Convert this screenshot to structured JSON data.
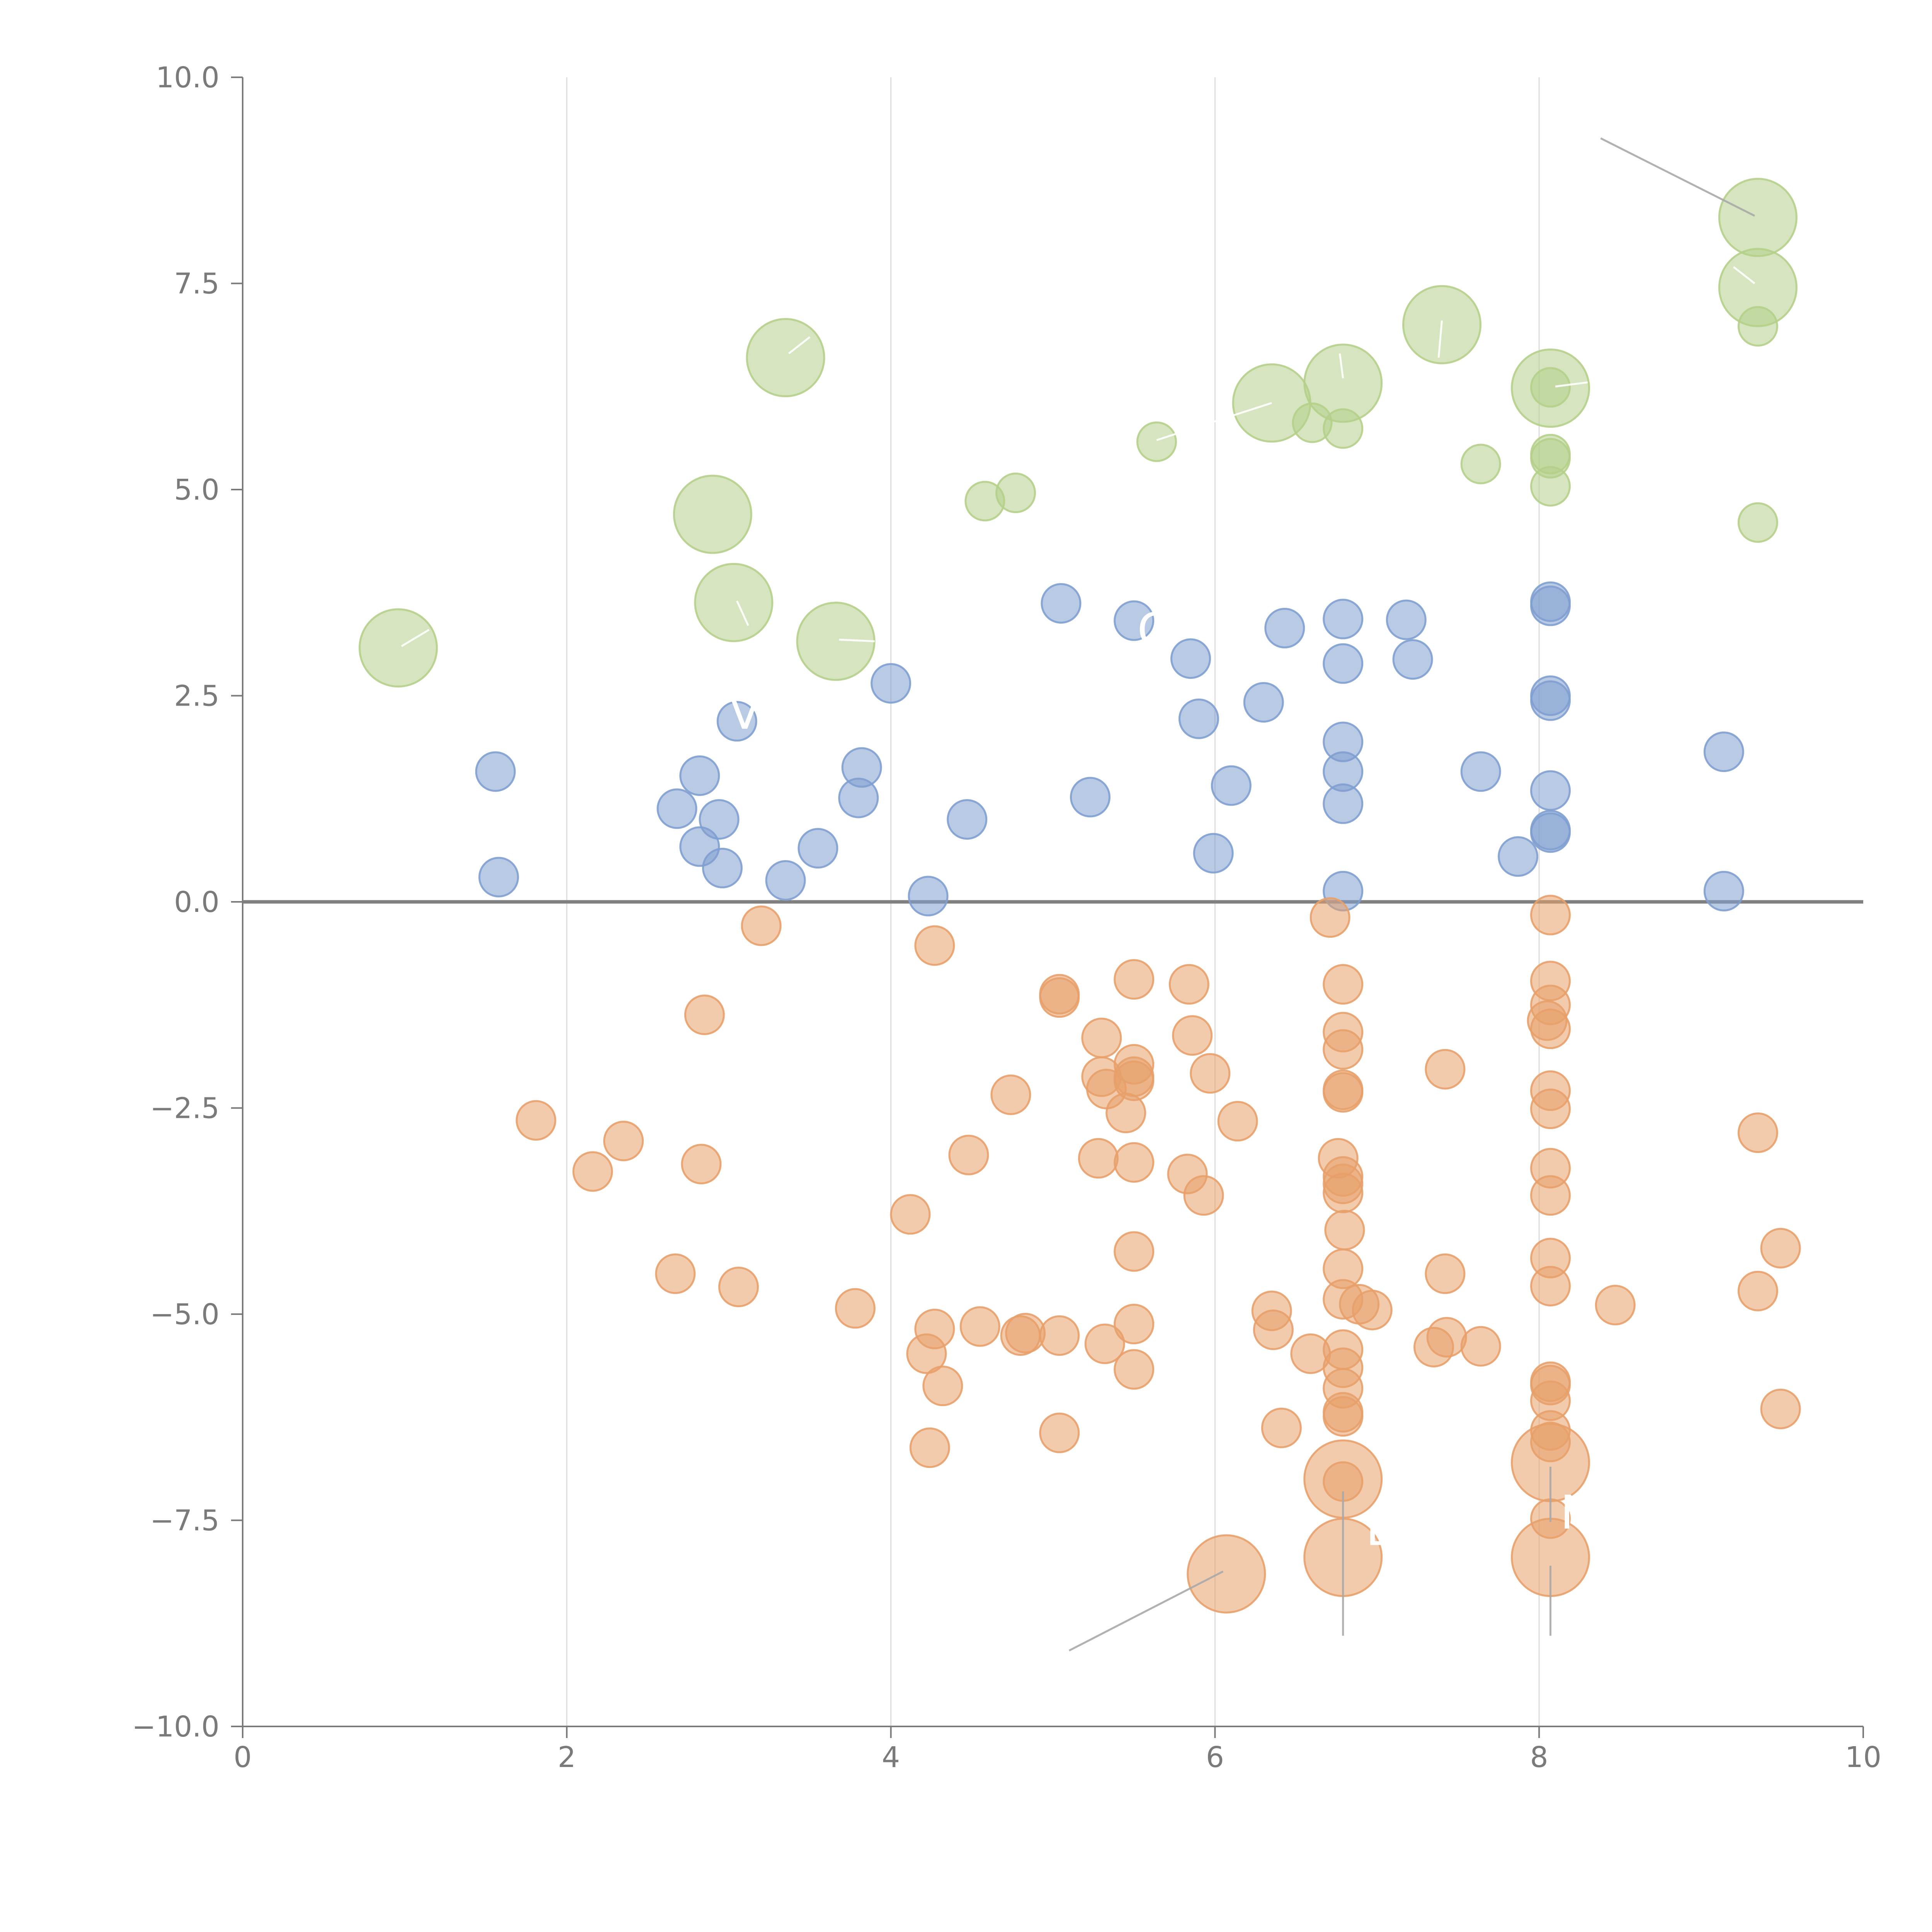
{
  "chart_data": {
    "type": "scatter",
    "title": "",
    "xlabel": "",
    "ylabel": "",
    "xlim": [
      0,
      10
    ],
    "ylim": [
      -10,
      10
    ],
    "x_ticks": [
      0,
      2,
      4,
      6,
      8,
      10
    ],
    "x_tick_labels": [
      "0",
      "2",
      "4",
      "6",
      "8",
      "10"
    ],
    "y_ticks": [
      10,
      7.5,
      5,
      2.5,
      0,
      -2.5,
      -5,
      -7.5,
      -10
    ],
    "y_tick_labels": [
      "10.0",
      "7.5",
      "5.0",
      "2.5",
      "0.0",
      "−2.5",
      "−5.0",
      "−7.5",
      "−10.0"
    ],
    "grid": "vertical",
    "zero_line": true,
    "legend": "none",
    "colors": {
      "blue": "#7F9FD0",
      "orange": "#E8A06A",
      "green": "#B5CF8A",
      "axis": "#7a7a7a",
      "grid": "#dcdcdc",
      "zero": "#808080",
      "label": "#ffffff",
      "leader": "#a8a8a8"
    },
    "series": [
      {
        "name": "blue",
        "color": "#7F9FD0",
        "points": [
          {
            "x": 1.56,
            "y": 1.58,
            "s": 1
          },
          {
            "x": 1.58,
            "y": 0.3,
            "s": 1
          },
          {
            "x": 2.68,
            "y": 1.13,
            "s": 1
          },
          {
            "x": 2.82,
            "y": 1.53,
            "s": 1
          },
          {
            "x": 2.82,
            "y": 0.67,
            "s": 1
          },
          {
            "x": 2.94,
            "y": 1.0,
            "s": 1
          },
          {
            "x": 2.96,
            "y": 0.41,
            "s": 1
          },
          {
            "x": 3.05,
            "y": 2.19,
            "s": 1
          },
          {
            "x": 3.35,
            "y": 0.26,
            "s": 1
          },
          {
            "x": 3.55,
            "y": 0.65,
            "s": 1
          },
          {
            "x": 3.8,
            "y": 1.26,
            "s": 1
          },
          {
            "x": 3.82,
            "y": 1.63,
            "s": 1
          },
          {
            "x": 4.0,
            "y": 2.65,
            "s": 1
          },
          {
            "x": 4.23,
            "y": 0.07,
            "s": 1
          },
          {
            "x": 4.47,
            "y": 1.0,
            "s": 1
          },
          {
            "x": 5.05,
            "y": 3.62,
            "s": 1
          },
          {
            "x": 5.23,
            "y": 1.27,
            "s": 1
          },
          {
            "x": 5.5,
            "y": 3.41,
            "s": 1
          },
          {
            "x": 5.85,
            "y": 2.95,
            "s": 1
          },
          {
            "x": 5.9,
            "y": 2.22,
            "s": 1
          },
          {
            "x": 5.99,
            "y": 0.59,
            "s": 1
          },
          {
            "x": 6.1,
            "y": 1.41,
            "s": 1
          },
          {
            "x": 6.3,
            "y": 2.42,
            "s": 1
          },
          {
            "x": 6.43,
            "y": 3.32,
            "s": 1
          },
          {
            "x": 6.79,
            "y": 3.43,
            "s": 1
          },
          {
            "x": 6.79,
            "y": 2.89,
            "s": 1
          },
          {
            "x": 6.79,
            "y": 1.94,
            "s": 1
          },
          {
            "x": 6.79,
            "y": 1.58,
            "s": 1
          },
          {
            "x": 6.79,
            "y": 1.19,
            "s": 1
          },
          {
            "x": 6.79,
            "y": 0.13,
            "s": 1
          },
          {
            "x": 7.18,
            "y": 3.42,
            "s": 1
          },
          {
            "x": 7.22,
            "y": 2.94,
            "s": 1
          },
          {
            "x": 7.64,
            "y": 1.58,
            "s": 1
          },
          {
            "x": 7.87,
            "y": 0.55,
            "s": 1
          },
          {
            "x": 8.07,
            "y": 3.64,
            "s": 1
          },
          {
            "x": 8.07,
            "y": 3.59,
            "s": 1
          },
          {
            "x": 8.07,
            "y": 2.5,
            "s": 1
          },
          {
            "x": 8.07,
            "y": 2.44,
            "s": 1
          },
          {
            "x": 8.07,
            "y": 1.35,
            "s": 1
          },
          {
            "x": 8.07,
            "y": 0.87,
            "s": 1
          },
          {
            "x": 8.07,
            "y": 0.84,
            "s": 1
          },
          {
            "x": 9.14,
            "y": 1.82,
            "s": 1
          },
          {
            "x": 9.14,
            "y": 0.13,
            "s": 1
          }
        ]
      },
      {
        "name": "orange",
        "color": "#E8A06A",
        "points": [
          {
            "x": 1.81,
            "y": -2.65,
            "s": 1
          },
          {
            "x": 2.16,
            "y": -3.27,
            "s": 1
          },
          {
            "x": 2.35,
            "y": -2.9,
            "s": 1
          },
          {
            "x": 2.67,
            "y": -4.51,
            "s": 1
          },
          {
            "x": 2.83,
            "y": -3.18,
            "s": 1
          },
          {
            "x": 2.85,
            "y": -1.37,
            "s": 1
          },
          {
            "x": 3.06,
            "y": -4.67,
            "s": 1
          },
          {
            "x": 3.2,
            "y": -0.29,
            "s": 1
          },
          {
            "x": 3.78,
            "y": -4.93,
            "s": 1
          },
          {
            "x": 4.12,
            "y": -3.79,
            "s": 1
          },
          {
            "x": 4.22,
            "y": -5.48,
            "s": 1
          },
          {
            "x": 4.24,
            "y": -6.62,
            "s": 1
          },
          {
            "x": 4.27,
            "y": -0.53,
            "s": 1
          },
          {
            "x": 4.27,
            "y": -5.18,
            "s": 1
          },
          {
            "x": 4.32,
            "y": -5.87,
            "s": 1
          },
          {
            "x": 4.48,
            "y": -3.07,
            "s": 1
          },
          {
            "x": 4.55,
            "y": -5.15,
            "s": 1
          },
          {
            "x": 4.74,
            "y": -2.34,
            "s": 1
          },
          {
            "x": 4.8,
            "y": -5.26,
            "s": 1
          },
          {
            "x": 4.83,
            "y": -5.23,
            "s": 1
          },
          {
            "x": 5.04,
            "y": -1.12,
            "s": 1
          },
          {
            "x": 5.04,
            "y": -1.16,
            "s": 1
          },
          {
            "x": 5.04,
            "y": -5.26,
            "s": 1
          },
          {
            "x": 5.04,
            "y": -6.44,
            "s": 1
          },
          {
            "x": 5.28,
            "y": -3.11,
            "s": 1
          },
          {
            "x": 5.3,
            "y": -1.65,
            "s": 1
          },
          {
            "x": 5.3,
            "y": -2.12,
            "s": 1
          },
          {
            "x": 5.32,
            "y": -5.36,
            "s": 1
          },
          {
            "x": 5.33,
            "y": -2.27,
            "s": 1
          },
          {
            "x": 5.45,
            "y": -2.56,
            "s": 1
          },
          {
            "x": 5.5,
            "y": -0.94,
            "s": 1
          },
          {
            "x": 5.5,
            "y": -1.97,
            "s": 1
          },
          {
            "x": 5.5,
            "y": -2.12,
            "s": 1
          },
          {
            "x": 5.5,
            "y": -2.17,
            "s": 1
          },
          {
            "x": 5.5,
            "y": -3.16,
            "s": 1
          },
          {
            "x": 5.5,
            "y": -4.24,
            "s": 1
          },
          {
            "x": 5.5,
            "y": -5.12,
            "s": 1
          },
          {
            "x": 5.5,
            "y": -5.67,
            "s": 1
          },
          {
            "x": 5.83,
            "y": -3.3,
            "s": 1
          },
          {
            "x": 5.84,
            "y": -1.0,
            "s": 1
          },
          {
            "x": 5.86,
            "y": -1.62,
            "s": 1
          },
          {
            "x": 5.93,
            "y": -3.56,
            "s": 1
          },
          {
            "x": 5.97,
            "y": -2.08,
            "s": 1
          },
          {
            "x": 6.07,
            "y": -8.15,
            "s": 4
          },
          {
            "x": 6.14,
            "y": -2.66,
            "s": 1
          },
          {
            "x": 6.35,
            "y": -4.96,
            "s": 1
          },
          {
            "x": 6.36,
            "y": -5.19,
            "s": 1
          },
          {
            "x": 6.41,
            "y": -6.38,
            "s": 1
          },
          {
            "x": 6.59,
            "y": -5.48,
            "s": 1
          },
          {
            "x": 6.71,
            "y": -0.19,
            "s": 1
          },
          {
            "x": 6.79,
            "y": -1.0,
            "s": 1
          },
          {
            "x": 6.79,
            "y": -1.58,
            "s": 1
          },
          {
            "x": 6.79,
            "y": -1.79,
            "s": 1
          },
          {
            "x": 6.79,
            "y": -2.28,
            "s": 1
          },
          {
            "x": 6.79,
            "y": -2.31,
            "s": 1
          },
          {
            "x": 6.76,
            "y": -3.11,
            "s": 1
          },
          {
            "x": 6.79,
            "y": -3.33,
            "s": 1
          },
          {
            "x": 6.79,
            "y": -3.42,
            "s": 1
          },
          {
            "x": 6.79,
            "y": -3.53,
            "s": 1
          },
          {
            "x": 6.8,
            "y": -3.98,
            "s": 1
          },
          {
            "x": 6.79,
            "y": -4.45,
            "s": 1
          },
          {
            "x": 6.79,
            "y": -4.82,
            "s": 1
          },
          {
            "x": 6.89,
            "y": -4.88,
            "s": 1
          },
          {
            "x": 6.97,
            "y": -4.95,
            "s": 1
          },
          {
            "x": 6.79,
            "y": -5.43,
            "s": 1
          },
          {
            "x": 6.79,
            "y": -5.65,
            "s": 1
          },
          {
            "x": 6.79,
            "y": -5.9,
            "s": 1
          },
          {
            "x": 6.79,
            "y": -6.19,
            "s": 1
          },
          {
            "x": 6.79,
            "y": -6.24,
            "s": 1
          },
          {
            "x": 6.79,
            "y": -7.0,
            "s": 4
          },
          {
            "x": 6.79,
            "y": -7.03,
            "s": 1
          },
          {
            "x": 6.79,
            "y": -7.95,
            "s": 4
          },
          {
            "x": 7.35,
            "y": -5.4,
            "s": 1
          },
          {
            "x": 7.42,
            "y": -2.03,
            "s": 1
          },
          {
            "x": 7.42,
            "y": -4.51,
            "s": 1
          },
          {
            "x": 7.43,
            "y": -5.28,
            "s": 1
          },
          {
            "x": 7.64,
            "y": -5.39,
            "s": 1
          },
          {
            "x": 8.07,
            "y": -0.16,
            "s": 1
          },
          {
            "x": 8.07,
            "y": -0.96,
            "s": 1
          },
          {
            "x": 8.07,
            "y": -1.25,
            "s": 1
          },
          {
            "x": 8.05,
            "y": -1.44,
            "s": 1
          },
          {
            "x": 8.07,
            "y": -1.54,
            "s": 1
          },
          {
            "x": 8.07,
            "y": -2.29,
            "s": 1
          },
          {
            "x": 8.07,
            "y": -2.51,
            "s": 1
          },
          {
            "x": 8.07,
            "y": -3.23,
            "s": 1
          },
          {
            "x": 8.07,
            "y": -3.56,
            "s": 1
          },
          {
            "x": 8.07,
            "y": -4.32,
            "s": 1
          },
          {
            "x": 8.07,
            "y": -4.66,
            "s": 1
          },
          {
            "x": 8.07,
            "y": -5.82,
            "s": 1
          },
          {
            "x": 8.07,
            "y": -5.86,
            "s": 1
          },
          {
            "x": 8.07,
            "y": -6.05,
            "s": 1
          },
          {
            "x": 8.07,
            "y": -6.41,
            "s": 1
          },
          {
            "x": 8.07,
            "y": -6.55,
            "s": 1
          },
          {
            "x": 8.07,
            "y": -6.8,
            "s": 4
          },
          {
            "x": 8.07,
            "y": -7.48,
            "s": 1
          },
          {
            "x": 8.07,
            "y": -7.95,
            "s": 4
          },
          {
            "x": 8.47,
            "y": -4.89,
            "s": 1
          },
          {
            "x": 9.35,
            "y": -2.8,
            "s": 1
          },
          {
            "x": 9.35,
            "y": -4.72,
            "s": 1
          },
          {
            "x": 9.49,
            "y": -4.2,
            "s": 1
          },
          {
            "x": 9.49,
            "y": -6.15,
            "s": 1
          }
        ]
      },
      {
        "name": "green",
        "color": "#B5CF8A",
        "points": [
          {
            "x": 0.96,
            "y": 3.08,
            "s": 4
          },
          {
            "x": 2.9,
            "y": 4.7,
            "s": 4
          },
          {
            "x": 3.03,
            "y": 3.63,
            "s": 4
          },
          {
            "x": 3.35,
            "y": 6.6,
            "s": 4
          },
          {
            "x": 3.66,
            "y": 3.16,
            "s": 4
          },
          {
            "x": 4.58,
            "y": 4.86,
            "s": 1
          },
          {
            "x": 4.77,
            "y": 4.96,
            "s": 1
          },
          {
            "x": 5.64,
            "y": 5.58,
            "s": 1
          },
          {
            "x": 6.35,
            "y": 6.05,
            "s": 4
          },
          {
            "x": 6.6,
            "y": 5.81,
            "s": 1
          },
          {
            "x": 6.79,
            "y": 6.29,
            "s": 4
          },
          {
            "x": 6.79,
            "y": 5.74,
            "s": 1
          },
          {
            "x": 7.4,
            "y": 7.0,
            "s": 4
          },
          {
            "x": 7.64,
            "y": 5.31,
            "s": 1
          },
          {
            "x": 8.07,
            "y": 6.23,
            "s": 4
          },
          {
            "x": 8.07,
            "y": 6.24,
            "s": 1
          },
          {
            "x": 8.07,
            "y": 5.43,
            "s": 1
          },
          {
            "x": 8.07,
            "y": 5.38,
            "s": 1
          },
          {
            "x": 8.07,
            "y": 5.04,
            "s": 1
          },
          {
            "x": 9.35,
            "y": 8.3,
            "s": 4
          },
          {
            "x": 9.35,
            "y": 7.45,
            "s": 4
          },
          {
            "x": 9.35,
            "y": 6.98,
            "s": 1
          },
          {
            "x": 9.35,
            "y": 4.6,
            "s": 1
          }
        ]
      }
    ],
    "annotations": [
      {
        "text": "E",
        "x": 6.93,
        "y": -7.8
      },
      {
        "text": "N",
        "x": 8.13,
        "y": -7.6
      },
      {
        "text": "Ve",
        "x": 3.0,
        "y": 2.1
      },
      {
        "text": "G",
        "x": 5.52,
        "y": 3.1
      }
    ],
    "leader_lines": [
      {
        "color": "gray",
        "x1": 8.38,
        "y1": 9.26,
        "x2": 9.33,
        "y2": 8.32
      },
      {
        "color": "gray",
        "x1": 5.1,
        "y1": -9.08,
        "x2": 6.05,
        "y2": -8.12
      },
      {
        "color": "gray",
        "x1": 6.79,
        "y1": -7.15,
        "x2": 6.79,
        "y2": -8.9
      },
      {
        "color": "gray",
        "x1": 8.07,
        "y1": -6.85,
        "x2": 8.07,
        "y2": -7.52
      },
      {
        "color": "gray",
        "x1": 8.07,
        "y1": -8.05,
        "x2": 8.07,
        "y2": -8.9
      },
      {
        "color": "white",
        "x1": 0.98,
        "y1": 3.1,
        "x2": 1.15,
        "y2": 3.3
      },
      {
        "color": "white",
        "x1": 3.37,
        "y1": 6.65,
        "x2": 3.5,
        "y2": 6.85
      },
      {
        "color": "white",
        "x1": 3.05,
        "y1": 3.65,
        "x2": 3.12,
        "y2": 3.35
      },
      {
        "color": "white",
        "x1": 3.68,
        "y1": 3.18,
        "x2": 3.9,
        "y2": 3.16
      },
      {
        "color": "white",
        "x1": 5.64,
        "y1": 5.6,
        "x2": 6.35,
        "y2": 6.05
      },
      {
        "color": "white",
        "x1": 6.79,
        "y1": 6.35,
        "x2": 6.77,
        "y2": 6.65
      },
      {
        "color": "white",
        "x1": 7.4,
        "y1": 7.05,
        "x2": 7.38,
        "y2": 6.6
      },
      {
        "color": "white",
        "x1": 8.1,
        "y1": 6.25,
        "x2": 8.3,
        "y2": 6.3
      },
      {
        "color": "white",
        "x1": 9.33,
        "y1": 7.5,
        "x2": 9.2,
        "y2": 7.7
      }
    ]
  }
}
